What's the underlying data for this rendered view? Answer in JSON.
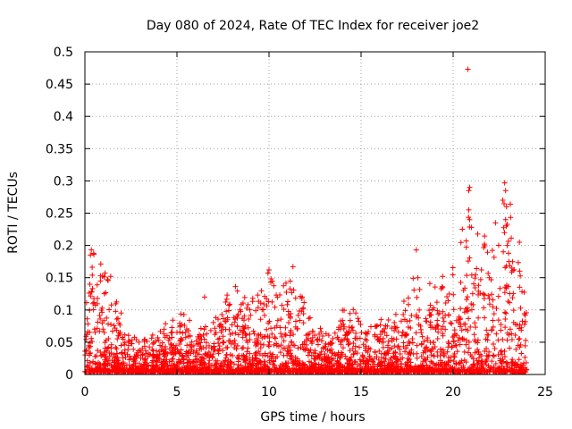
{
  "chart_data": {
    "type": "scatter",
    "title": "Day 080 of 2024, Rate Of TEC Index for receiver joe2",
    "xlabel": "GPS time / hours",
    "ylabel": "ROTI / TECUs",
    "xlim": [
      0,
      25
    ],
    "ylim": [
      0,
      0.5
    ],
    "xticks": [
      0,
      5,
      10,
      15,
      20,
      25
    ],
    "xtick_labels": [
      "0",
      "5",
      "10",
      "15",
      "20",
      "25"
    ],
    "yticks": [
      0,
      0.05,
      0.1,
      0.15,
      0.2,
      0.25,
      0.3,
      0.35,
      0.4,
      0.45,
      0.5
    ],
    "ytick_labels": [
      "0",
      "0.05",
      "0.1",
      "0.15",
      "0.2",
      "0.25",
      "0.3",
      "0.35",
      "0.4",
      "0.45",
      "0.5"
    ],
    "grid": true,
    "marker": "+",
    "color": "#ff0000",
    "envelope": [
      [
        0.0,
        0.1
      ],
      [
        0.5,
        0.19
      ],
      [
        1.0,
        0.16
      ],
      [
        1.5,
        0.13
      ],
      [
        2.0,
        0.09
      ],
      [
        2.5,
        0.06
      ],
      [
        3.0,
        0.05
      ],
      [
        3.5,
        0.06
      ],
      [
        4.0,
        0.07
      ],
      [
        4.5,
        0.08
      ],
      [
        5.0,
        0.09
      ],
      [
        5.5,
        0.09
      ],
      [
        6.0,
        0.08
      ],
      [
        6.5,
        0.07
      ],
      [
        7.0,
        0.08
      ],
      [
        7.5,
        0.11
      ],
      [
        8.0,
        0.14
      ],
      [
        8.5,
        0.13
      ],
      [
        9.0,
        0.11
      ],
      [
        9.5,
        0.13
      ],
      [
        10.0,
        0.16
      ],
      [
        10.5,
        0.12
      ],
      [
        11.0,
        0.15
      ],
      [
        11.5,
        0.14
      ],
      [
        12.0,
        0.1
      ],
      [
        12.5,
        0.07
      ],
      [
        13.0,
        0.07
      ],
      [
        13.5,
        0.06
      ],
      [
        14.0,
        0.1
      ],
      [
        14.5,
        0.11
      ],
      [
        15.0,
        0.08
      ],
      [
        15.5,
        0.07
      ],
      [
        16.0,
        0.08
      ],
      [
        16.5,
        0.09
      ],
      [
        17.0,
        0.1
      ],
      [
        17.5,
        0.12
      ],
      [
        18.0,
        0.16
      ],
      [
        18.5,
        0.13
      ],
      [
        19.0,
        0.15
      ],
      [
        19.5,
        0.15
      ],
      [
        20.0,
        0.18
      ],
      [
        20.5,
        0.22
      ],
      [
        21.0,
        0.25
      ],
      [
        21.5,
        0.2
      ],
      [
        22.0,
        0.23
      ],
      [
        22.5,
        0.25
      ],
      [
        23.0,
        0.28
      ],
      [
        23.5,
        0.2
      ],
      [
        24.0,
        0.12
      ]
    ],
    "notable_points": [
      {
        "x": 20.8,
        "y": 0.473
      },
      {
        "x": 20.9,
        "y": 0.29
      },
      {
        "x": 20.85,
        "y": 0.285
      },
      {
        "x": 22.8,
        "y": 0.297
      },
      {
        "x": 22.85,
        "y": 0.285
      },
      {
        "x": 22.9,
        "y": 0.26
      },
      {
        "x": 22.7,
        "y": 0.27
      },
      {
        "x": 20.85,
        "y": 0.255
      },
      {
        "x": 20.9,
        "y": 0.24
      },
      {
        "x": 22.3,
        "y": 0.235
      },
      {
        "x": 22.85,
        "y": 0.24
      },
      {
        "x": 20.5,
        "y": 0.225
      },
      {
        "x": 21.0,
        "y": 0.228
      },
      {
        "x": 0.35,
        "y": 0.193
      },
      {
        "x": 0.3,
        "y": 0.185
      },
      {
        "x": 10.0,
        "y": 0.162
      },
      {
        "x": 11.3,
        "y": 0.167
      },
      {
        "x": 18.0,
        "y": 0.193
      },
      {
        "x": 23.6,
        "y": 0.205
      },
      {
        "x": 6.5,
        "y": 0.12
      },
      {
        "x": 1.4,
        "y": 0.152
      }
    ]
  }
}
